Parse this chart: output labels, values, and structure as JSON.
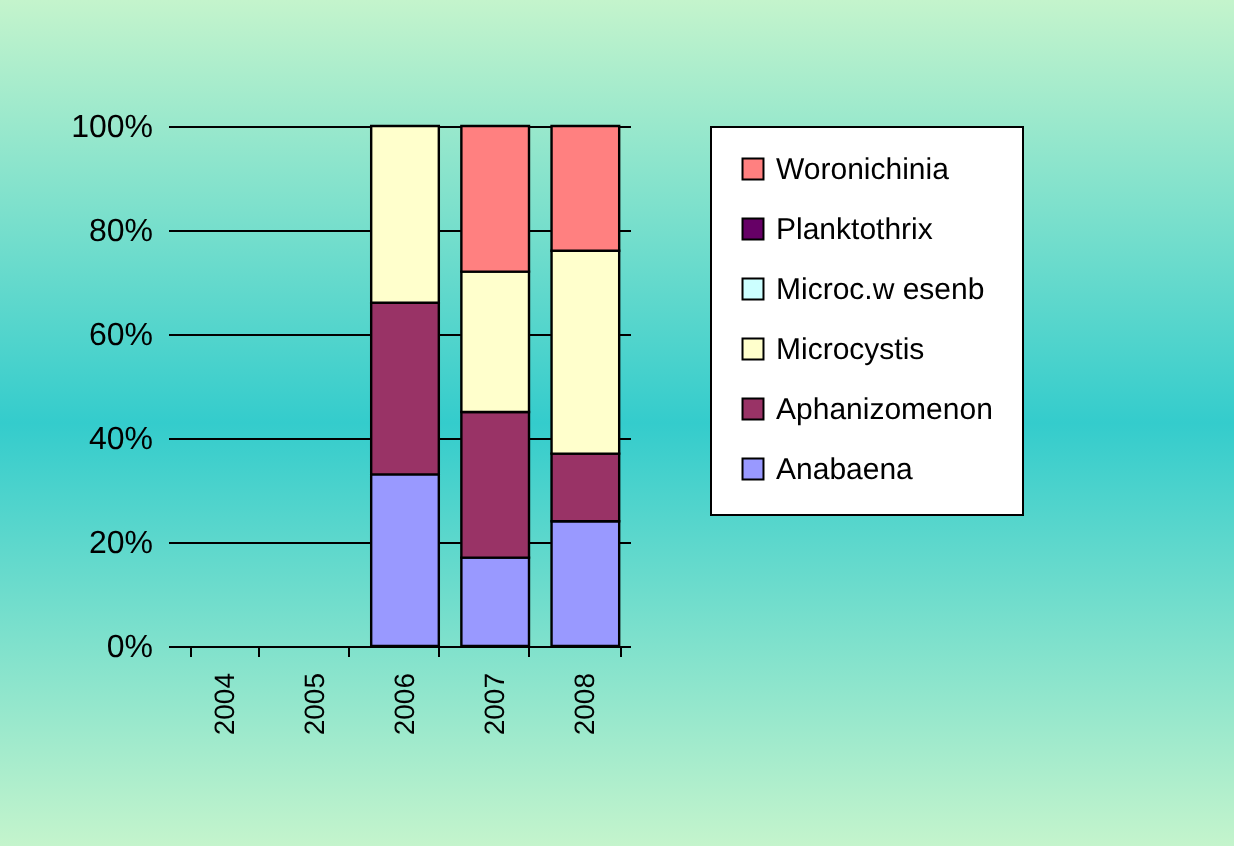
{
  "chart_data": {
    "type": "bar",
    "stacked": true,
    "categories": [
      "2004",
      "2005",
      "2006",
      "2007",
      "2008"
    ],
    "series": [
      {
        "name": "Anabaena",
        "color": "#9999ff",
        "values": [
          null,
          null,
          33,
          17,
          24
        ]
      },
      {
        "name": "Aphanizomenon",
        "color": "#993366",
        "values": [
          null,
          null,
          33,
          28,
          13
        ]
      },
      {
        "name": "Microcystis",
        "color": "#ffffcc",
        "values": [
          null,
          null,
          34,
          27,
          39
        ]
      },
      {
        "name": "Microc.w esenb",
        "color": "#ccffff",
        "values": [
          null,
          null,
          null,
          null,
          null
        ]
      },
      {
        "name": "Planktothrix",
        "color": "#660066",
        "values": [
          null,
          null,
          null,
          null,
          null
        ]
      },
      {
        "name": "Woronichinia",
        "color": "#ff8080",
        "values": [
          null,
          null,
          null,
          28,
          24
        ]
      }
    ],
    "ylim": [
      0,
      100
    ],
    "yticks": [
      {
        "value": 0,
        "label": "0%"
      },
      {
        "value": 20,
        "label": "20%"
      },
      {
        "value": 40,
        "label": "40%"
      },
      {
        "value": 60,
        "label": "60%"
      },
      {
        "value": 80,
        "label": "80%"
      },
      {
        "value": 100,
        "label": "100%"
      }
    ],
    "grid": "y",
    "legend": "right"
  }
}
